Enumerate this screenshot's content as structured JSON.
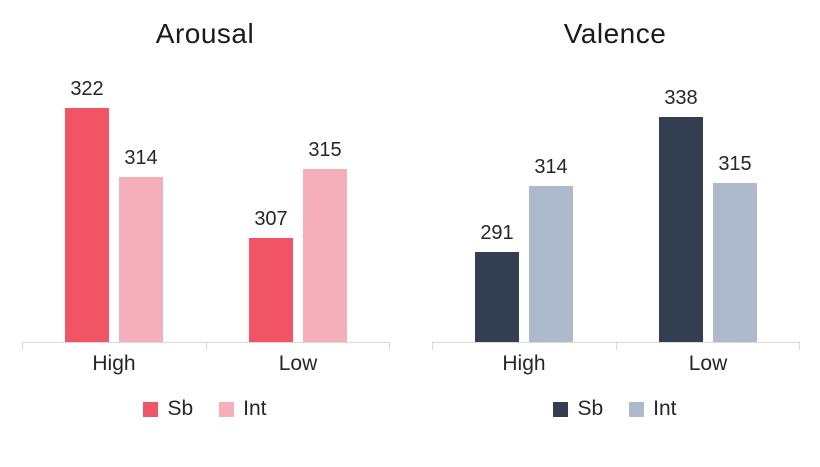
{
  "chart_data": [
    {
      "type": "bar",
      "title": "Arousal",
      "categories": [
        "High",
        "Low"
      ],
      "series": [
        {
          "name": "Sb",
          "color": "#f05465",
          "values": [
            322,
            307
          ]
        },
        {
          "name": "Int",
          "color": "#f5afba",
          "values": [
            314,
            315
          ]
        }
      ],
      "ylim": [
        295,
        325
      ],
      "grid": false,
      "legend_position": "bottom",
      "data_labels": true,
      "axis_color": "#d9d9d9"
    },
    {
      "type": "bar",
      "title": "Valence",
      "categories": [
        "High",
        "Low"
      ],
      "series": [
        {
          "name": "Sb",
          "color": "#333e50",
          "values": [
            291,
            338
          ]
        },
        {
          "name": "Int",
          "color": "#adbacc",
          "values": [
            314,
            315
          ]
        }
      ],
      "ylim": [
        260,
        350
      ],
      "grid": false,
      "legend_position": "bottom",
      "data_labels": true,
      "axis_color": "#d9d9d9"
    }
  ],
  "colors": {
    "background": "#ffffff",
    "text": "#262626",
    "axis": "#d9d9d9"
  }
}
